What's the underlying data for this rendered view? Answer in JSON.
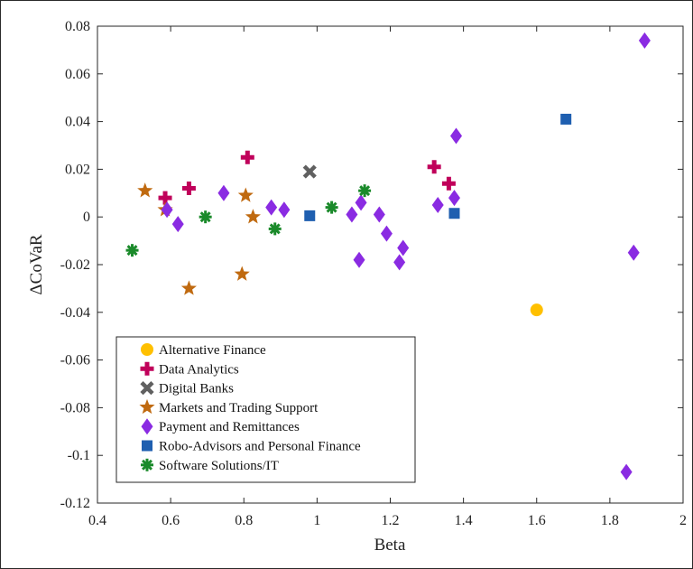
{
  "chart_data": {
    "type": "scatter",
    "title": "",
    "xlabel": "Beta",
    "ylabel": "ΔCoVaR",
    "xlim": [
      0.4,
      2
    ],
    "ylim": [
      -0.12,
      0.08
    ],
    "xticks": [
      0.4,
      0.6,
      0.8,
      1,
      1.2,
      1.4,
      1.6,
      1.8,
      2
    ],
    "xtick_labels": [
      "0.4",
      "0.6",
      "0.8",
      "1",
      "1.2",
      "1.4",
      "1.6",
      "1.8",
      "2"
    ],
    "yticks": [
      0.08,
      0.06,
      0.04,
      0.02,
      0,
      -0.02,
      -0.04,
      -0.06,
      -0.08,
      -0.1,
      -0.12
    ],
    "ytick_labels": [
      "0.08",
      "0.06",
      "0.04",
      "0.02",
      "0",
      "-0.02",
      "-0.04",
      "-0.06",
      "-0.08",
      "-0.1",
      "-0.12"
    ],
    "grid": false,
    "legend_position": "bottom-left",
    "series": [
      {
        "name": "Alternative Finance",
        "marker": "circle",
        "color": "#FFC000",
        "x": [
          1.6
        ],
        "y": [
          -0.039
        ]
      },
      {
        "name": "Data Analytics",
        "marker": "plus",
        "color": "#C0005A",
        "x": [
          0.585,
          0.65,
          0.81,
          1.32,
          1.36
        ],
        "y": [
          0.008,
          0.012,
          0.025,
          0.021,
          0.014
        ]
      },
      {
        "name": "Digital Banks",
        "marker": "x",
        "color": "#606060",
        "x": [
          0.98
        ],
        "y": [
          0.019
        ]
      },
      {
        "name": "Markets and Trading Support",
        "marker": "star",
        "color": "#C06A10",
        "x": [
          0.53,
          0.585,
          0.65,
          0.795,
          0.805,
          0.825
        ],
        "y": [
          0.011,
          0.003,
          -0.03,
          -0.024,
          0.009,
          0.0
        ]
      },
      {
        "name": "Payment and Remittances",
        "marker": "diamond",
        "color": "#8A2BE2",
        "x": [
          0.59,
          0.62,
          0.745,
          0.875,
          0.91,
          1.095,
          1.115,
          1.12,
          1.17,
          1.19,
          1.225,
          1.235,
          1.33,
          1.375,
          1.38,
          1.845,
          1.865,
          1.895
        ],
        "y": [
          0.003,
          -0.003,
          0.01,
          0.004,
          0.003,
          0.001,
          -0.018,
          0.006,
          0.001,
          -0.007,
          -0.019,
          -0.013,
          0.005,
          0.008,
          0.034,
          -0.107,
          -0.015,
          0.074
        ]
      },
      {
        "name": "Robo-Advisors and Personal Finance",
        "marker": "square",
        "color": "#1F5FB0",
        "x": [
          0.98,
          1.375,
          1.68
        ],
        "y": [
          0.0005,
          0.0015,
          0.041
        ]
      },
      {
        "name": "Software Solutions/IT",
        "marker": "asterisk",
        "color": "#1A8A2A",
        "x": [
          0.495,
          0.695,
          0.885,
          1.04,
          1.13
        ],
        "y": [
          -0.014,
          0.0,
          -0.005,
          0.004,
          0.011
        ]
      }
    ]
  }
}
